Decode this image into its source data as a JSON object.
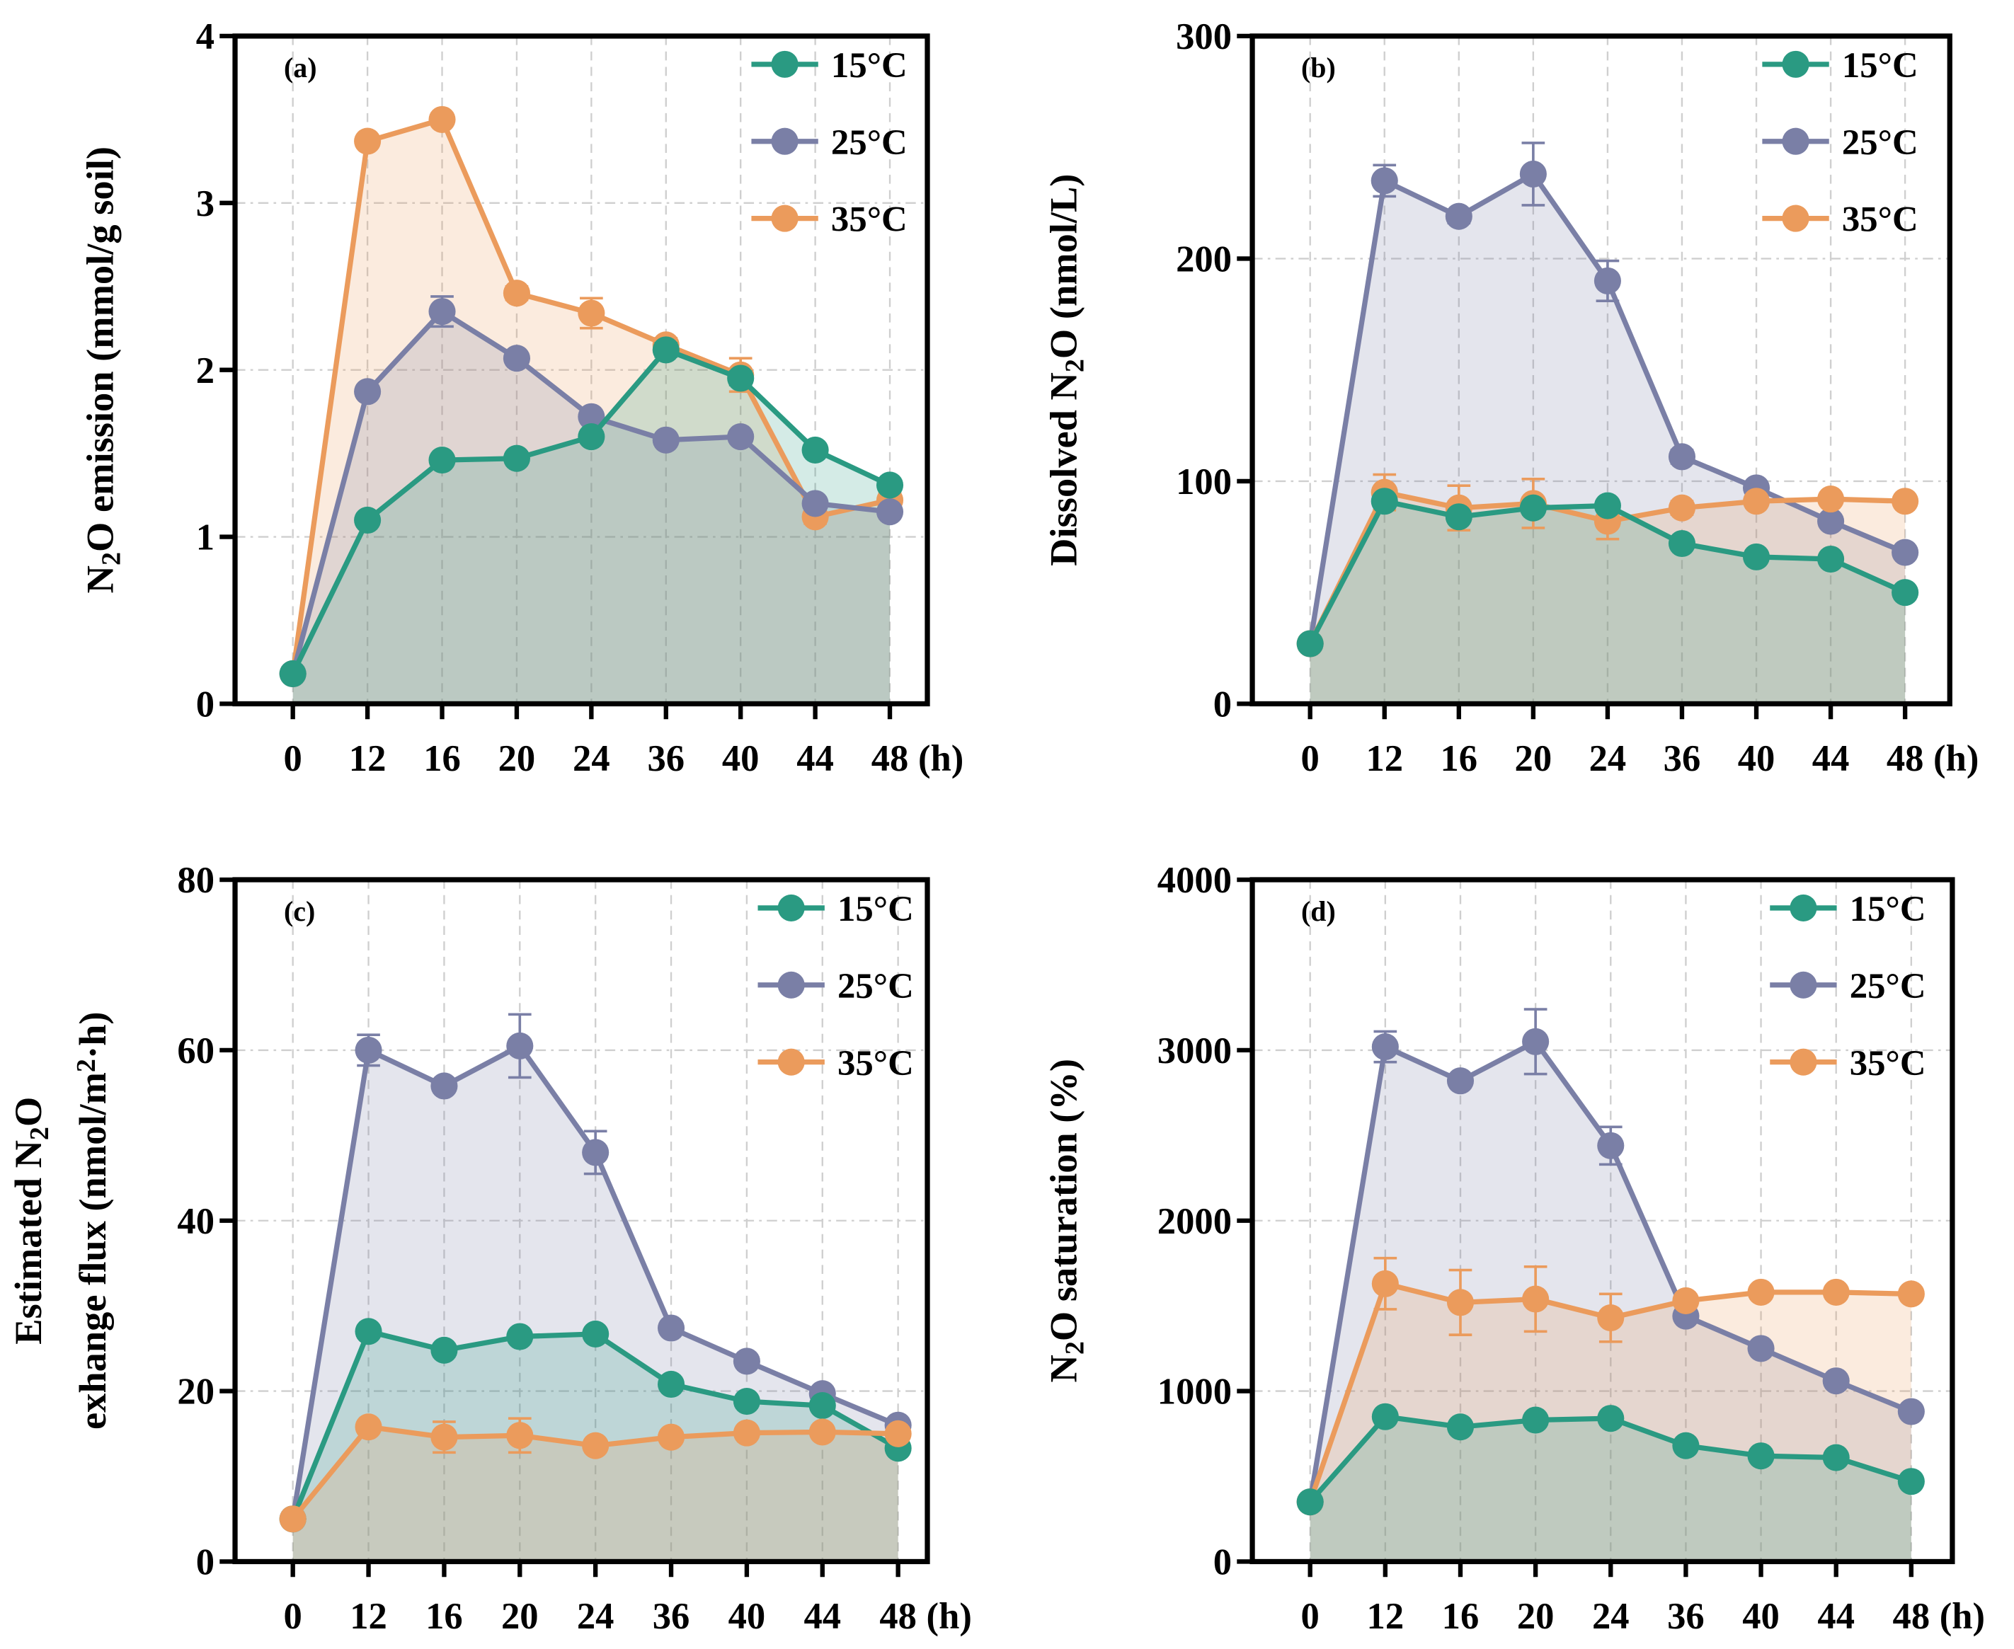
{
  "colors": {
    "15C": "#2a9a82",
    "25C": "#7a7fa6",
    "35C": "#eb9b5c"
  },
  "chart_data": [
    {
      "type": "line",
      "panel_label": "(a)",
      "categories": [
        "0",
        "12",
        "16",
        "20",
        "24",
        "36",
        "40",
        "44",
        "48"
      ],
      "x_unit": "(h)",
      "ylabel": [
        {
          "t": "N"
        },
        {
          "t": "2",
          "sub": true
        },
        {
          "t": "O emission (mmol/g soil)"
        }
      ],
      "ylim": [
        0,
        4
      ],
      "yticks": [
        0,
        1,
        2,
        3,
        4
      ],
      "grid": true,
      "legend_placement": "top-right",
      "series": [
        {
          "name": "35°C",
          "key": "35C",
          "values": [
            0.18,
            3.37,
            3.5,
            2.46,
            2.34,
            2.15,
            1.97,
            1.12,
            1.22
          ],
          "errors": [
            0,
            0.03,
            0.03,
            0.04,
            0.09,
            0.04,
            0.1,
            0.04,
            0.04
          ]
        },
        {
          "name": "25°C",
          "key": "25C",
          "values": [
            0.18,
            1.87,
            2.35,
            2.07,
            1.72,
            1.58,
            1.6,
            1.2,
            1.15
          ],
          "errors": [
            0,
            0.03,
            0.09,
            0.03,
            0.03,
            0.03,
            0.03,
            0.03,
            0.03
          ]
        },
        {
          "name": "15°C",
          "key": "15C",
          "values": [
            0.18,
            1.1,
            1.46,
            1.47,
            1.6,
            2.12,
            1.95,
            1.52,
            1.31
          ],
          "errors": [
            0,
            0.02,
            0.02,
            0.02,
            0.03,
            0.04,
            0.04,
            0.03,
            0.03
          ]
        }
      ]
    },
    {
      "type": "line",
      "panel_label": "(b)",
      "categories": [
        "0",
        "12",
        "16",
        "20",
        "24",
        "36",
        "40",
        "44",
        "48"
      ],
      "x_unit": "(h)",
      "ylabel": [
        {
          "t": "Dissolved N"
        },
        {
          "t": "2",
          "sub": true
        },
        {
          "t": "O  (nmol/L)"
        }
      ],
      "ylim": [
        0,
        300
      ],
      "yticks": [
        0,
        100,
        200,
        300
      ],
      "grid": true,
      "legend_placement": "top-right",
      "series": [
        {
          "name": "25°C",
          "key": "25C",
          "values": [
            27,
            235,
            219,
            238,
            190,
            111,
            97,
            82,
            68
          ],
          "errors": [
            0,
            7,
            3,
            14,
            9,
            3,
            2,
            2,
            2
          ]
        },
        {
          "name": "35°C",
          "key": "35C",
          "values": [
            27,
            95,
            88,
            90,
            82,
            88,
            91,
            92,
            91
          ],
          "errors": [
            0,
            8,
            10,
            11,
            8,
            3,
            2,
            2,
            2
          ]
        },
        {
          "name": "15°C",
          "key": "15C",
          "values": [
            27,
            91,
            84,
            88,
            89,
            72,
            66,
            65,
            50
          ],
          "errors": [
            0,
            2,
            2,
            2,
            2,
            2,
            2,
            2,
            2
          ]
        }
      ]
    },
    {
      "type": "line",
      "panel_label": "(c)",
      "categories": [
        "0",
        "12",
        "16",
        "20",
        "24",
        "36",
        "40",
        "44",
        "48"
      ],
      "x_unit": "(h)",
      "ylabel": [
        {
          "t": "Estimated N"
        },
        {
          "t": "2",
          "sub": true
        },
        {
          "t": "O"
        },
        {
          "br": true
        },
        {
          "t": "exhange flux (nmol/m"
        },
        {
          "t": "2",
          "sup": true
        },
        {
          "t": "·h)"
        }
      ],
      "ylim": [
        0,
        80
      ],
      "yticks": [
        0,
        20,
        40,
        60,
        80
      ],
      "grid": true,
      "legend_placement": "top-right",
      "series": [
        {
          "name": "25°C",
          "key": "25C",
          "values": [
            5,
            60,
            55.8,
            60.5,
            48,
            27.4,
            23.5,
            19.7,
            16
          ],
          "errors": [
            0,
            1.8,
            0.6,
            3.7,
            2.5,
            0.6,
            0.5,
            0.5,
            0.5
          ]
        },
        {
          "name": "15°C",
          "key": "15C",
          "values": [
            5,
            27,
            24.8,
            26.4,
            26.7,
            20.8,
            18.8,
            18.3,
            13.3
          ],
          "errors": [
            0,
            0.5,
            0.5,
            0.5,
            0.5,
            0.5,
            0.5,
            0.5,
            0.5
          ]
        },
        {
          "name": "35°C",
          "key": "35C",
          "values": [
            5,
            15.8,
            14.6,
            14.8,
            13.6,
            14.6,
            15.1,
            15.2,
            15.0
          ],
          "errors": [
            0,
            0.5,
            1.8,
            2.0,
            0.6,
            0.5,
            0.5,
            0.5,
            0.5
          ]
        }
      ]
    },
    {
      "type": "line",
      "panel_label": "(d)",
      "categories": [
        "0",
        "12",
        "16",
        "20",
        "24",
        "36",
        "40",
        "44",
        "48"
      ],
      "x_unit": "(h)",
      "ylabel": [
        {
          "t": "N"
        },
        {
          "t": "2",
          "sub": true
        },
        {
          "t": "O saturation (%)"
        }
      ],
      "ylim": [
        0,
        4000
      ],
      "yticks": [
        0,
        1000,
        2000,
        3000,
        4000
      ],
      "grid": true,
      "legend_placement": "top-right",
      "series": [
        {
          "name": "25°C",
          "key": "25C",
          "values": [
            350,
            3020,
            2820,
            3050,
            2440,
            1440,
            1250,
            1060,
            880
          ],
          "errors": [
            0,
            90,
            20,
            190,
            110,
            20,
            20,
            20,
            20
          ]
        },
        {
          "name": "35°C",
          "key": "35C",
          "values": [
            350,
            1630,
            1520,
            1540,
            1430,
            1530,
            1580,
            1580,
            1570
          ],
          "errors": [
            0,
            150,
            190,
            190,
            140,
            20,
            20,
            20,
            20
          ]
        },
        {
          "name": "15°C",
          "key": "15C",
          "values": [
            350,
            850,
            790,
            830,
            840,
            680,
            620,
            610,
            470
          ],
          "errors": [
            0,
            20,
            20,
            20,
            20,
            20,
            20,
            20,
            20
          ]
        }
      ]
    }
  ],
  "legend": [
    "15°C",
    "25°C",
    "35°C"
  ],
  "legend_keys": [
    "15C",
    "25C",
    "35C"
  ]
}
